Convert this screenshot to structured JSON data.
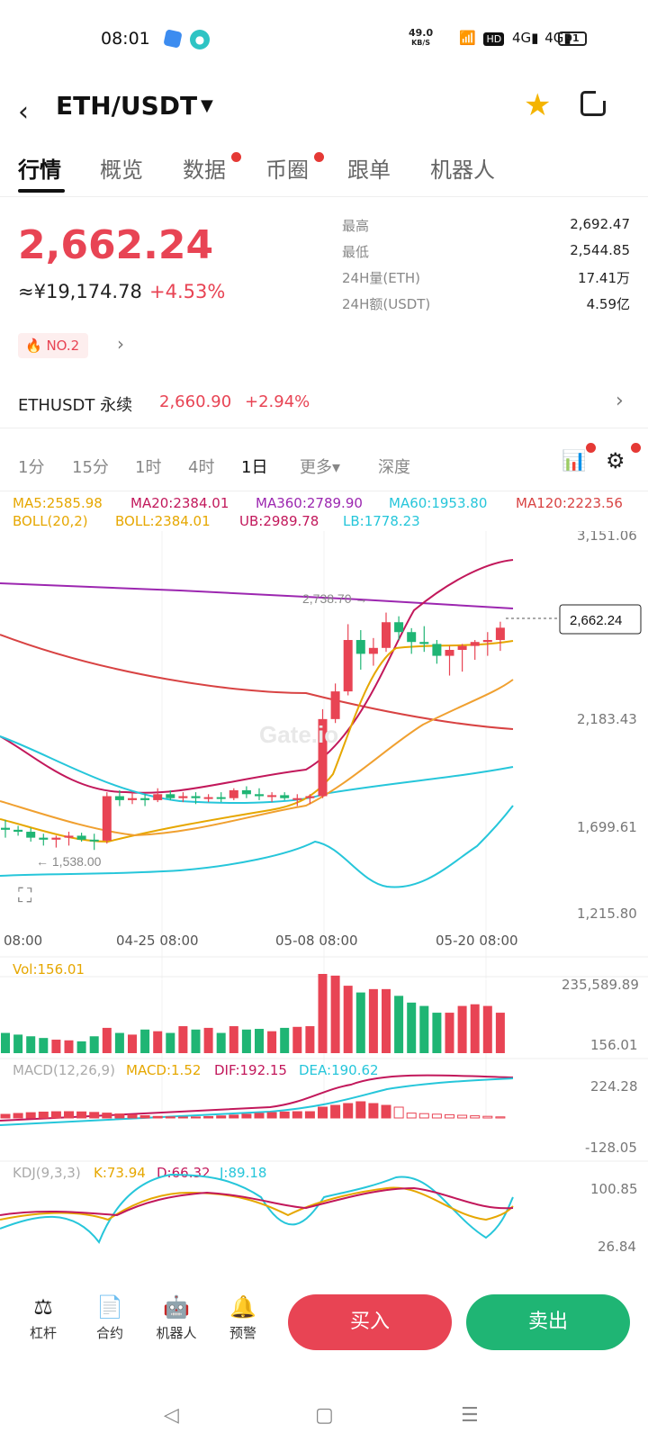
{
  "status_bar": {
    "time": "08:01",
    "net_speed": "49.0",
    "net_speed_unit": "KB/S",
    "signal_icons": "📶 HD 4G 4G",
    "battery": "91"
  },
  "header": {
    "pair": "ETH/USDT",
    "icons": [
      "back-icon",
      "dropdown-caret-icon",
      "star-icon",
      "share-icon"
    ]
  },
  "tabs": [
    {
      "label": "行情",
      "active": true
    },
    {
      "label": "概览"
    },
    {
      "label": "数据",
      "dot": true
    },
    {
      "label": "币圈",
      "dot": true
    },
    {
      "label": "跟单"
    },
    {
      "label": "机器人"
    }
  ],
  "ticker": {
    "price": "2,662.24",
    "cny": "≈¥19,174.78",
    "change": "+4.53%",
    "rank_badge": "NO.2"
  },
  "stats": [
    {
      "k": "最高",
      "v": "2,692.47"
    },
    {
      "k": "最低",
      "v": "2,544.85"
    },
    {
      "k": "24H量(ETH)",
      "v": "17.41万"
    },
    {
      "k": "24H额(USDT)",
      "v": "4.59亿"
    }
  ],
  "perpetual": {
    "name": "ETHUSDT 永续",
    "price": "2,660.90",
    "change": "+2.94%"
  },
  "timeframes": [
    "1分",
    "15分",
    "1时",
    "4时",
    "1日",
    "更多▾",
    "深度"
  ],
  "active_timeframe": "1日",
  "indicators": {
    "ma5": "MA5:2585.98",
    "ma20": "MA20:2384.01",
    "ma360": "MA360:2789.90",
    "ma60": "MA60:1953.80",
    "ma120": "MA120:2223.56",
    "boll": "BOLL(20,2)",
    "boll_val": "BOLL:2384.01",
    "ub": "UB:2989.78",
    "lb": "LB:1778.23"
  },
  "price_axis": [
    "3,151.06",
    "2,183.43",
    "1,699.61",
    "1,215.80"
  ],
  "date_axis": [
    "08:00",
    "04-25 08:00",
    "05-08 08:00",
    "05-20 08:00"
  ],
  "annotations": {
    "high": "2,738.70 →",
    "low": "← 1,538.00",
    "current": "2,662.24"
  },
  "watermark": "Gate.io",
  "volume": {
    "label": "Vol:156.01",
    "max": "235,589.89",
    "min": "156.01"
  },
  "macd": {
    "label": "MACD(12,26,9)",
    "macd": "MACD:1.52",
    "dif": "DIF:192.15",
    "dea": "DEA:190.62",
    "max": "224.28",
    "min": "-128.05"
  },
  "kdj": {
    "label": "KDJ(9,3,3)",
    "k": "K:73.94",
    "d": "D:66.32",
    "j": "J:89.18",
    "max": "100.85",
    "min": "26.84"
  },
  "colors": {
    "up": "#e84454",
    "down": "#1fb574"
  },
  "chart_data": {
    "type": "candlestick",
    "candles": [
      {
        "o": 1650,
        "h": 1690,
        "l": 1600,
        "c": 1640
      },
      {
        "o": 1640,
        "h": 1660,
        "l": 1610,
        "c": 1630
      },
      {
        "o": 1630,
        "h": 1650,
        "l": 1580,
        "c": 1600
      },
      {
        "o": 1600,
        "h": 1620,
        "l": 1560,
        "c": 1590
      },
      {
        "o": 1590,
        "h": 1610,
        "l": 1550,
        "c": 1600
      },
      {
        "o": 1600,
        "h": 1630,
        "l": 1560,
        "c": 1610
      },
      {
        "o": 1610,
        "h": 1625,
        "l": 1580,
        "c": 1590
      },
      {
        "o": 1590,
        "h": 1620,
        "l": 1538,
        "c": 1585
      },
      {
        "o": 1585,
        "h": 1830,
        "l": 1570,
        "c": 1810
      },
      {
        "o": 1810,
        "h": 1840,
        "l": 1760,
        "c": 1790
      },
      {
        "o": 1790,
        "h": 1830,
        "l": 1770,
        "c": 1800
      },
      {
        "o": 1800,
        "h": 1820,
        "l": 1760,
        "c": 1790
      },
      {
        "o": 1790,
        "h": 1850,
        "l": 1780,
        "c": 1820
      },
      {
        "o": 1820,
        "h": 1840,
        "l": 1790,
        "c": 1800
      },
      {
        "o": 1800,
        "h": 1830,
        "l": 1780,
        "c": 1810
      },
      {
        "o": 1810,
        "h": 1830,
        "l": 1770,
        "c": 1800
      },
      {
        "o": 1800,
        "h": 1820,
        "l": 1780,
        "c": 1805
      },
      {
        "o": 1805,
        "h": 1830,
        "l": 1780,
        "c": 1800
      },
      {
        "o": 1800,
        "h": 1850,
        "l": 1790,
        "c": 1840
      },
      {
        "o": 1840,
        "h": 1860,
        "l": 1800,
        "c": 1820
      },
      {
        "o": 1820,
        "h": 1850,
        "l": 1790,
        "c": 1810
      },
      {
        "o": 1810,
        "h": 1830,
        "l": 1780,
        "c": 1815
      },
      {
        "o": 1815,
        "h": 1830,
        "l": 1790,
        "c": 1800
      },
      {
        "o": 1800,
        "h": 1820,
        "l": 1760,
        "c": 1800
      },
      {
        "o": 1800,
        "h": 1820,
        "l": 1770,
        "c": 1810
      },
      {
        "o": 1810,
        "h": 2250,
        "l": 1800,
        "c": 2200
      },
      {
        "o": 2200,
        "h": 2380,
        "l": 2180,
        "c": 2340
      },
      {
        "o": 2340,
        "h": 2680,
        "l": 2320,
        "c": 2600
      },
      {
        "o": 2600,
        "h": 2650,
        "l": 2450,
        "c": 2530
      },
      {
        "o": 2530,
        "h": 2610,
        "l": 2470,
        "c": 2560
      },
      {
        "o": 2560,
        "h": 2738.7,
        "l": 2540,
        "c": 2690
      },
      {
        "o": 2690,
        "h": 2720,
        "l": 2600,
        "c": 2640
      },
      {
        "o": 2640,
        "h": 2660,
        "l": 2530,
        "c": 2590
      },
      {
        "o": 2590,
        "h": 2670,
        "l": 2540,
        "c": 2580
      },
      {
        "o": 2580,
        "h": 2600,
        "l": 2480,
        "c": 2520
      },
      {
        "o": 2520,
        "h": 2570,
        "l": 2420,
        "c": 2550
      },
      {
        "o": 2550,
        "h": 2580,
        "l": 2440,
        "c": 2570
      },
      {
        "o": 2570,
        "h": 2600,
        "l": 2500,
        "c": 2590
      },
      {
        "o": 2590,
        "h": 2640,
        "l": 2520,
        "c": 2600
      },
      {
        "o": 2600,
        "h": 2692.47,
        "l": 2544.85,
        "c": 2662.24
      }
    ],
    "volumes": [
      60,
      55,
      50,
      45,
      40,
      38,
      35,
      50,
      75,
      60,
      55,
      70,
      65,
      60,
      80,
      70,
      75,
      60,
      80,
      70,
      72,
      65,
      75,
      78,
      80,
      235,
      230,
      200,
      180,
      190,
      190,
      170,
      150,
      140,
      120,
      120,
      140,
      145,
      140,
      120
    ],
    "ylim": [
      1215.8,
      3151.06
    ]
  }
}
